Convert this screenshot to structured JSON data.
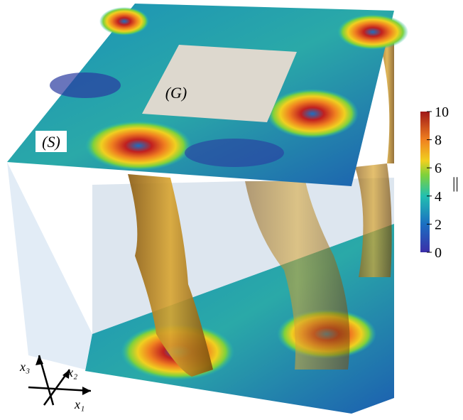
{
  "labels": {
    "g": "(G)",
    "s": "(S)"
  },
  "colorbar": {
    "lim": [
      0,
      10
    ],
    "ticks": [
      0,
      2,
      4,
      6,
      8,
      10
    ],
    "label": "||"
  },
  "axes": {
    "x1": "x₁",
    "x2": "x₂",
    "x3": "x₃"
  }
}
